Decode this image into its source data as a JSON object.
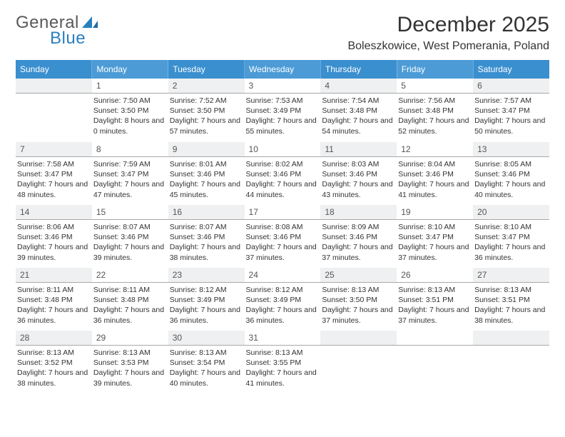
{
  "brand": {
    "general": "General",
    "blue": "Blue"
  },
  "title": "December 2025",
  "location": "Boleszkowice, West Pomerania, Poland",
  "colors": {
    "header_band": "#3a8fcf",
    "header_band_light": "#4c9bd6",
    "shaded_cell": "#eef0f1",
    "daynum_border": "#a9a9a9",
    "text": "#333333",
    "logo_gray": "#5a5a5a",
    "logo_blue": "#2a7fbf"
  },
  "weekdays": [
    "Sunday",
    "Monday",
    "Tuesday",
    "Wednesday",
    "Thursday",
    "Friday",
    "Saturday"
  ],
  "weeks": [
    [
      {
        "day": "",
        "sunrise": "",
        "sunset": "",
        "daylight": ""
      },
      {
        "day": "1",
        "sunrise": "Sunrise: 7:50 AM",
        "sunset": "Sunset: 3:50 PM",
        "daylight": "Daylight: 8 hours and 0 minutes."
      },
      {
        "day": "2",
        "sunrise": "Sunrise: 7:52 AM",
        "sunset": "Sunset: 3:50 PM",
        "daylight": "Daylight: 7 hours and 57 minutes."
      },
      {
        "day": "3",
        "sunrise": "Sunrise: 7:53 AM",
        "sunset": "Sunset: 3:49 PM",
        "daylight": "Daylight: 7 hours and 55 minutes."
      },
      {
        "day": "4",
        "sunrise": "Sunrise: 7:54 AM",
        "sunset": "Sunset: 3:48 PM",
        "daylight": "Daylight: 7 hours and 54 minutes."
      },
      {
        "day": "5",
        "sunrise": "Sunrise: 7:56 AM",
        "sunset": "Sunset: 3:48 PM",
        "daylight": "Daylight: 7 hours and 52 minutes."
      },
      {
        "day": "6",
        "sunrise": "Sunrise: 7:57 AM",
        "sunset": "Sunset: 3:47 PM",
        "daylight": "Daylight: 7 hours and 50 minutes."
      }
    ],
    [
      {
        "day": "7",
        "sunrise": "Sunrise: 7:58 AM",
        "sunset": "Sunset: 3:47 PM",
        "daylight": "Daylight: 7 hours and 48 minutes."
      },
      {
        "day": "8",
        "sunrise": "Sunrise: 7:59 AM",
        "sunset": "Sunset: 3:47 PM",
        "daylight": "Daylight: 7 hours and 47 minutes."
      },
      {
        "day": "9",
        "sunrise": "Sunrise: 8:01 AM",
        "sunset": "Sunset: 3:46 PM",
        "daylight": "Daylight: 7 hours and 45 minutes."
      },
      {
        "day": "10",
        "sunrise": "Sunrise: 8:02 AM",
        "sunset": "Sunset: 3:46 PM",
        "daylight": "Daylight: 7 hours and 44 minutes."
      },
      {
        "day": "11",
        "sunrise": "Sunrise: 8:03 AM",
        "sunset": "Sunset: 3:46 PM",
        "daylight": "Daylight: 7 hours and 43 minutes."
      },
      {
        "day": "12",
        "sunrise": "Sunrise: 8:04 AM",
        "sunset": "Sunset: 3:46 PM",
        "daylight": "Daylight: 7 hours and 41 minutes."
      },
      {
        "day": "13",
        "sunrise": "Sunrise: 8:05 AM",
        "sunset": "Sunset: 3:46 PM",
        "daylight": "Daylight: 7 hours and 40 minutes."
      }
    ],
    [
      {
        "day": "14",
        "sunrise": "Sunrise: 8:06 AM",
        "sunset": "Sunset: 3:46 PM",
        "daylight": "Daylight: 7 hours and 39 minutes."
      },
      {
        "day": "15",
        "sunrise": "Sunrise: 8:07 AM",
        "sunset": "Sunset: 3:46 PM",
        "daylight": "Daylight: 7 hours and 39 minutes."
      },
      {
        "day": "16",
        "sunrise": "Sunrise: 8:07 AM",
        "sunset": "Sunset: 3:46 PM",
        "daylight": "Daylight: 7 hours and 38 minutes."
      },
      {
        "day": "17",
        "sunrise": "Sunrise: 8:08 AM",
        "sunset": "Sunset: 3:46 PM",
        "daylight": "Daylight: 7 hours and 37 minutes."
      },
      {
        "day": "18",
        "sunrise": "Sunrise: 8:09 AM",
        "sunset": "Sunset: 3:46 PM",
        "daylight": "Daylight: 7 hours and 37 minutes."
      },
      {
        "day": "19",
        "sunrise": "Sunrise: 8:10 AM",
        "sunset": "Sunset: 3:47 PM",
        "daylight": "Daylight: 7 hours and 37 minutes."
      },
      {
        "day": "20",
        "sunrise": "Sunrise: 8:10 AM",
        "sunset": "Sunset: 3:47 PM",
        "daylight": "Daylight: 7 hours and 36 minutes."
      }
    ],
    [
      {
        "day": "21",
        "sunrise": "Sunrise: 8:11 AM",
        "sunset": "Sunset: 3:48 PM",
        "daylight": "Daylight: 7 hours and 36 minutes."
      },
      {
        "day": "22",
        "sunrise": "Sunrise: 8:11 AM",
        "sunset": "Sunset: 3:48 PM",
        "daylight": "Daylight: 7 hours and 36 minutes."
      },
      {
        "day": "23",
        "sunrise": "Sunrise: 8:12 AM",
        "sunset": "Sunset: 3:49 PM",
        "daylight": "Daylight: 7 hours and 36 minutes."
      },
      {
        "day": "24",
        "sunrise": "Sunrise: 8:12 AM",
        "sunset": "Sunset: 3:49 PM",
        "daylight": "Daylight: 7 hours and 36 minutes."
      },
      {
        "day": "25",
        "sunrise": "Sunrise: 8:13 AM",
        "sunset": "Sunset: 3:50 PM",
        "daylight": "Daylight: 7 hours and 37 minutes."
      },
      {
        "day": "26",
        "sunrise": "Sunrise: 8:13 AM",
        "sunset": "Sunset: 3:51 PM",
        "daylight": "Daylight: 7 hours and 37 minutes."
      },
      {
        "day": "27",
        "sunrise": "Sunrise: 8:13 AM",
        "sunset": "Sunset: 3:51 PM",
        "daylight": "Daylight: 7 hours and 38 minutes."
      }
    ],
    [
      {
        "day": "28",
        "sunrise": "Sunrise: 8:13 AM",
        "sunset": "Sunset: 3:52 PM",
        "daylight": "Daylight: 7 hours and 38 minutes."
      },
      {
        "day": "29",
        "sunrise": "Sunrise: 8:13 AM",
        "sunset": "Sunset: 3:53 PM",
        "daylight": "Daylight: 7 hours and 39 minutes."
      },
      {
        "day": "30",
        "sunrise": "Sunrise: 8:13 AM",
        "sunset": "Sunset: 3:54 PM",
        "daylight": "Daylight: 7 hours and 40 minutes."
      },
      {
        "day": "31",
        "sunrise": "Sunrise: 8:13 AM",
        "sunset": "Sunset: 3:55 PM",
        "daylight": "Daylight: 7 hours and 41 minutes."
      },
      {
        "day": "",
        "sunrise": "",
        "sunset": "",
        "daylight": ""
      },
      {
        "day": "",
        "sunrise": "",
        "sunset": "",
        "daylight": ""
      },
      {
        "day": "",
        "sunrise": "",
        "sunset": "",
        "daylight": ""
      }
    ]
  ]
}
